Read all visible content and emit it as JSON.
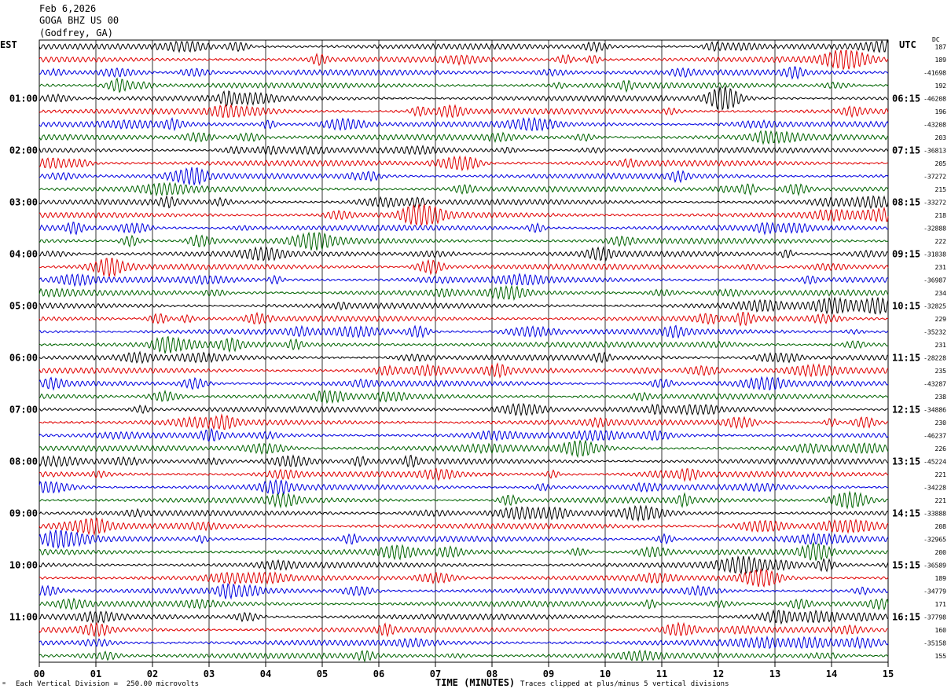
{
  "header": {
    "date": "Feb 6,2026",
    "station": "GOGA BHZ US 00",
    "location": "(Godfrey, GA)"
  },
  "left_axis_title": "EST",
  "right_axis_title": "UTC",
  "dc_title": "DC",
  "footer": {
    "scale_note": "Each Vertical Division =  250.00 microvolts",
    "clip_note": "Traces clipped at plus/minus 5 vertical divisions",
    "small_mark": "="
  },
  "colors": {
    "cycle": [
      "#000000",
      "#e00000",
      "#0000e0",
      "#006400"
    ],
    "grid": "#000000"
  },
  "chart_data": {
    "type": "line",
    "title": "",
    "xlabel": "TIME (MINUTES)",
    "ylabel": "",
    "xlim": [
      0,
      15
    ],
    "x_ticks": [
      "00",
      "01",
      "02",
      "03",
      "04",
      "05",
      "06",
      "07",
      "08",
      "09",
      "10",
      "11",
      "12",
      "13",
      "14",
      "15"
    ],
    "traces_per_hour": 4,
    "trace_count": 48,
    "left_hour_labels": [
      "01:00",
      "02:00",
      "03:00",
      "04:00",
      "05:00",
      "06:00",
      "07:00",
      "08:00",
      "09:00",
      "10:00",
      "11:00"
    ],
    "right_hour_labels": [
      "06:15",
      "07:15",
      "08:15",
      "09:15",
      "10:15",
      "11:15",
      "12:15",
      "13:15",
      "14:15",
      "15:15",
      "16:15"
    ],
    "dc_offsets": [
      "187",
      "189",
      "-41698",
      "192",
      "-46208",
      "196",
      "-43208",
      "203",
      "-36813",
      "205",
      "-37272",
      "215",
      "-33272",
      "218",
      "-32888",
      "222",
      "-31838",
      "231",
      "-36987",
      "234",
      "-32825",
      "229",
      "-35232",
      "231",
      "-28228",
      "235",
      "-43287",
      "238",
      "-34886",
      "230",
      "-46237",
      "226",
      "-45224",
      "221",
      "-34228",
      "221",
      "-33888",
      "208",
      "-32965",
      "200",
      "-36589",
      "189",
      "-34779",
      "171",
      "-37798",
      "160",
      "-35158",
      "155"
    ]
  }
}
